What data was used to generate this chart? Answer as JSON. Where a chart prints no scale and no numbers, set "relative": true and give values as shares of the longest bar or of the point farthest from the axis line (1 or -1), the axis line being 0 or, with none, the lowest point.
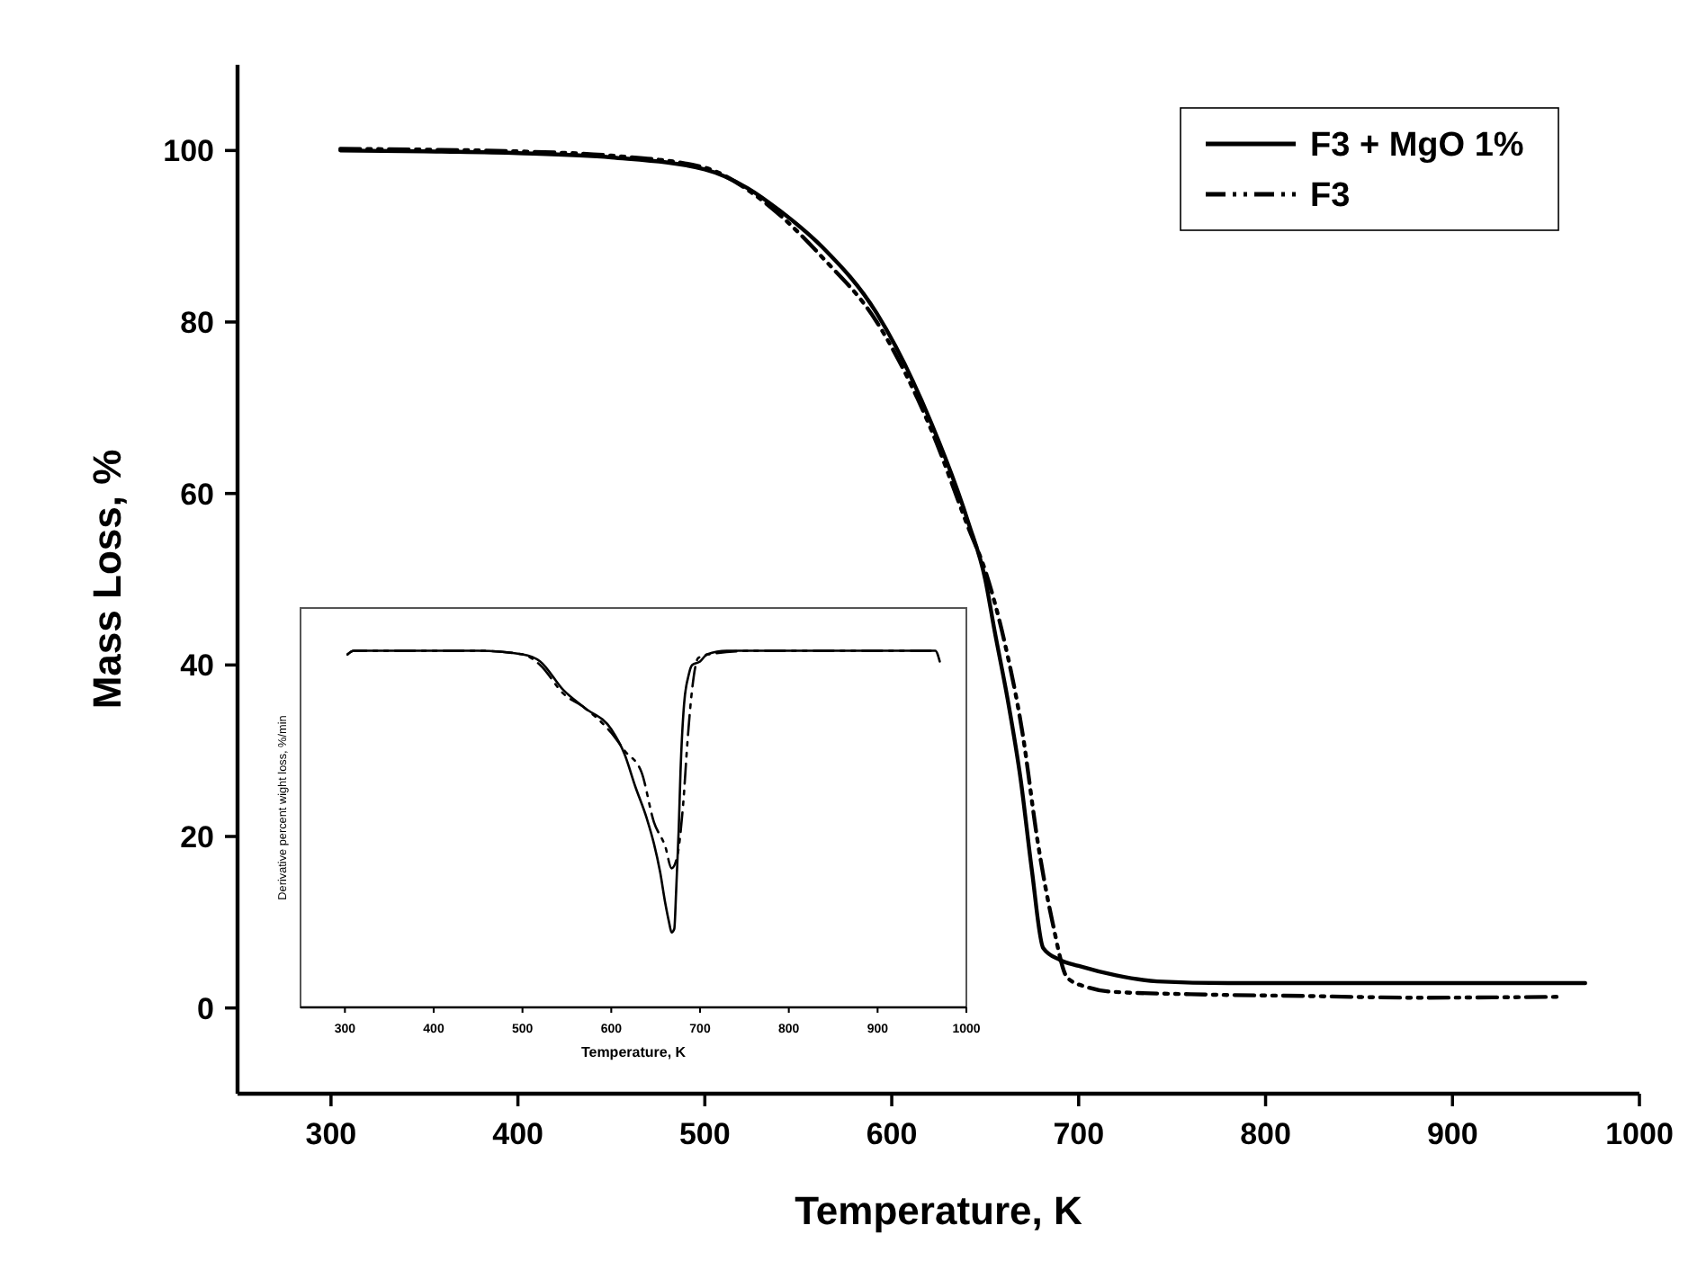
{
  "chart_data": [
    {
      "type": "line",
      "xlabel": "Temperature, K",
      "ylabel": "Mass Loss, %",
      "xlim": [
        250,
        1000
      ],
      "xticks": [
        300,
        400,
        500,
        600,
        700,
        800,
        900,
        1000
      ],
      "ylim": [
        -10,
        110
      ],
      "yticks": [
        0,
        20,
        40,
        60,
        80,
        100
      ],
      "legend": "top right",
      "grid": false,
      "marker": "none",
      "series": [
        {
          "name": "F3 + MgO 1%",
          "color": "#000000",
          "line_style": "solid",
          "x": [
            305,
            350,
            400,
            450,
            500,
            523,
            540,
            563,
            592,
            621,
            641,
            650,
            655,
            662,
            669,
            675,
            681,
            690,
            700,
            720,
            742,
            780,
            850,
            971
          ],
          "values": [
            100,
            99.9,
            99.7,
            99.2,
            97.8,
            95.6,
            93,
            88.7,
            81,
            68.3,
            56.6,
            50,
            44,
            36,
            26.6,
            16,
            7,
            5.6,
            4.9,
            3.8,
            3.1,
            2.9,
            2.9,
            2.9
          ]
        },
        {
          "name": "F3",
          "color": "#000000",
          "line_style": "dashed",
          "x": [
            305,
            350,
            400,
            450,
            500,
            523,
            540,
            563,
            592,
            621,
            641,
            650,
            660,
            670,
            678,
            686,
            694,
            705,
            717,
            760,
            820,
            880,
            957
          ],
          "values": [
            100.2,
            100.1,
            99.9,
            99.4,
            98,
            95.4,
            92.5,
            87.5,
            80,
            67.5,
            56,
            51,
            43,
            32,
            19.5,
            10,
            3.5,
            2.4,
            1.9,
            1.6,
            1.4,
            1.2,
            1.3
          ]
        }
      ]
    },
    {
      "type": "line",
      "relative": true,
      "xlabel": "Temperature, K",
      "ylabel": "Derivative percent wight loss, %/min",
      "xlim": [
        250,
        1000
      ],
      "xticks": [
        300,
        400,
        500,
        600,
        700,
        800,
        900,
        1000
      ],
      "legend": false,
      "grid": false,
      "marker": "none",
      "series": [
        {
          "color": "#000000",
          "line_style": "solid",
          "x": [
            303,
            310,
            350,
            400,
            450,
            500,
            520,
            546,
            570,
            600,
            615,
            627,
            640,
            648,
            655,
            661,
            665,
            668,
            671,
            673,
            676,
            678,
            682,
            687,
            691,
            700,
            708,
            730,
            760,
            800,
            900,
            965,
            970
          ],
          "values": [
            0.99,
            1.0,
            1.0,
            1.0,
            1.0,
            0.99,
            0.97,
            0.89,
            0.84,
            0.78,
            0.71,
            0.62,
            0.53,
            0.46,
            0.38,
            0.29,
            0.24,
            0.21,
            0.22,
            0.32,
            0.5,
            0.66,
            0.85,
            0.93,
            0.96,
            0.97,
            0.99,
            1.0,
            1.0,
            1.0,
            1.0,
            1.0,
            0.97
          ]
        },
        {
          "color": "#000000",
          "line_style": "dashed",
          "x": [
            303,
            310,
            350,
            400,
            450,
            500,
            520,
            546,
            570,
            600,
            615,
            634,
            648,
            661,
            668,
            674,
            681,
            686,
            691,
            698,
            710,
            760,
            800,
            900,
            965
          ],
          "values": [
            0.99,
            1.0,
            1.0,
            1.0,
            1.0,
            0.99,
            0.96,
            0.88,
            0.84,
            0.77,
            0.72,
            0.66,
            0.52,
            0.45,
            0.39,
            0.42,
            0.57,
            0.75,
            0.89,
            0.98,
            0.99,
            1.0,
            1.0,
            1.0,
            1.0
          ]
        }
      ]
    }
  ]
}
